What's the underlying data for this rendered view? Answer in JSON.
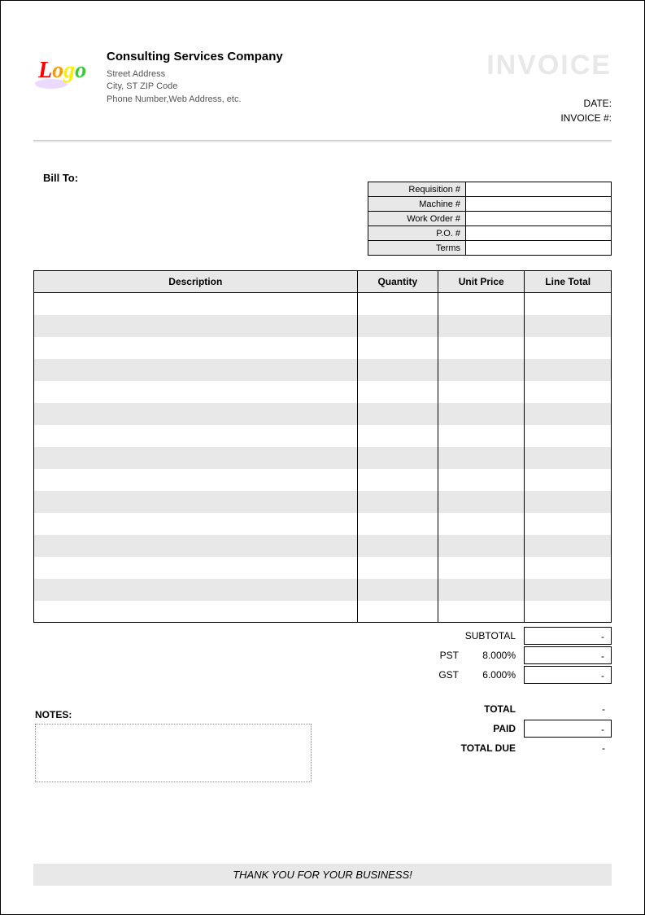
{
  "company": {
    "name": "Consulting Services Company",
    "street": "Street Address",
    "city_line": "City, ST  ZIP Code",
    "contact_line": "Phone Number,Web Address, etc."
  },
  "logo": {
    "text": "Logo",
    "colors": [
      "#ff0000",
      "#ff9900",
      "#ffee00",
      "#33cc33",
      "#0066ff",
      "#cc00cc"
    ]
  },
  "invoice": {
    "title": "INVOICE",
    "date_label": "DATE:",
    "number_label": "INVOICE #:"
  },
  "billto_label": "Bill To:",
  "requisition": [
    {
      "label": "Requisition #",
      "value": ""
    },
    {
      "label": "Machine #",
      "value": ""
    },
    {
      "label": "Work Order #",
      "value": ""
    },
    {
      "label": "P.O. #",
      "value": ""
    },
    {
      "label": "Terms",
      "value": ""
    }
  ],
  "items_table": {
    "columns": [
      "Description",
      "Quantity",
      "Unit Price",
      "Line Total"
    ],
    "row_count": 15,
    "alt_row_bg": "#e8e8e8",
    "row_bg": "#ffffff",
    "border_color": "#000000"
  },
  "summary": {
    "subtotal": {
      "label": "SUBTOTAL",
      "value": "-"
    },
    "pst": {
      "label": "PST",
      "rate": "8.000%",
      "value": "-"
    },
    "gst": {
      "label": "GST",
      "rate": "6.000%",
      "value": "-"
    },
    "total": {
      "label": "TOTAL",
      "value": "-"
    },
    "paid": {
      "label": "PAID",
      "value": "-"
    },
    "total_due": {
      "label": "TOTAL DUE",
      "value": "-"
    }
  },
  "notes_label": "NOTES:",
  "thankyou": "THANK YOU FOR YOUR BUSINESS!",
  "colors": {
    "background": "#ffffff",
    "text": "#000000",
    "muted_text": "#555555",
    "header_title": "#e8e8e8",
    "cell_alt": "#e8e8e8",
    "border": "#000000",
    "notes_border": "#888888"
  }
}
